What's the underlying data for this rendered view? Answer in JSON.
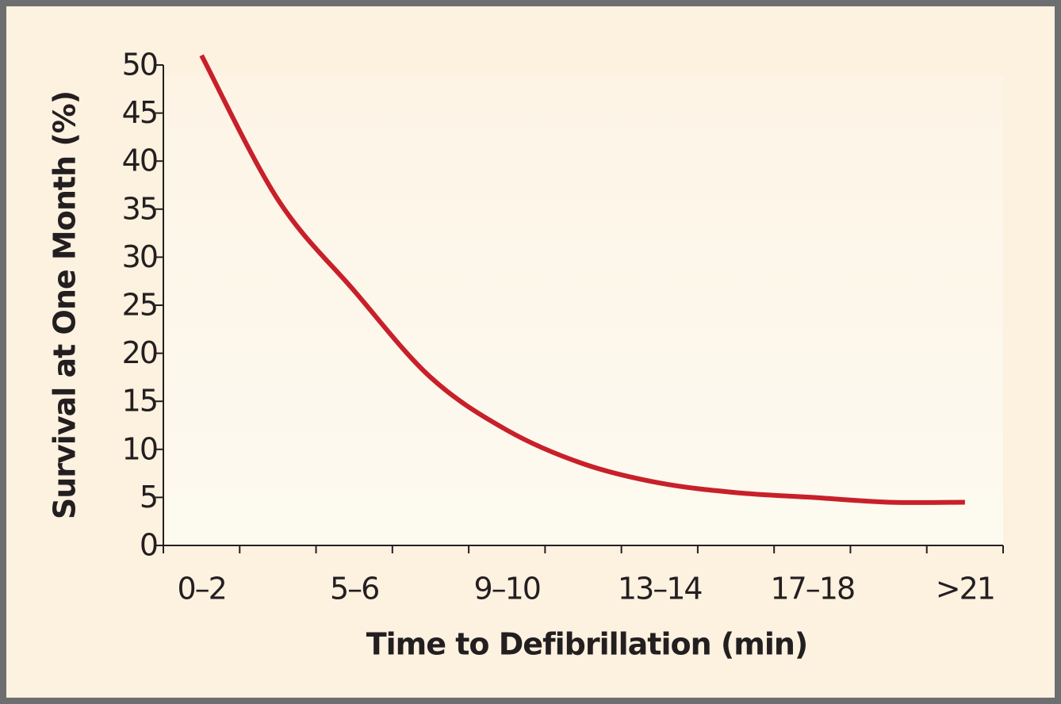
{
  "chart_data": {
    "type": "line",
    "x_label": "Time to Defibrillation (min)",
    "y_label": "Survival at One Month (%)",
    "categories": [
      "0–2",
      null,
      "5–6",
      null,
      "9–10",
      null,
      "13–14",
      null,
      "17–18",
      null,
      ">21"
    ],
    "series": [
      {
        "name": "Survival",
        "color": "#c8202a",
        "values": [
          51,
          36,
          26.5,
          17.5,
          12,
          8.5,
          6.5,
          5.5,
          5,
          4.5,
          4.5
        ]
      }
    ],
    "ylim": [
      0,
      50
    ],
    "yticks": [
      0,
      5,
      10,
      15,
      20,
      25,
      30,
      35,
      40,
      45,
      50
    ]
  }
}
